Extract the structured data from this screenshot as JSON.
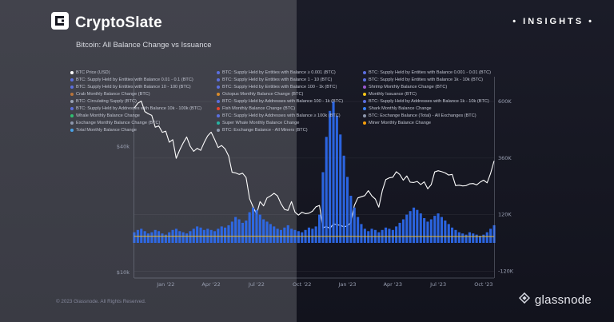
{
  "header": {
    "brand": "CryptoSlate",
    "badge": "• INSIGHTS •",
    "subtitle": "Bitcoin: All Balance Change vs Issuance"
  },
  "footer": {
    "copyright": "© 2023 Glassnode. All Rights Reserved.",
    "brand": "glassnode"
  },
  "legend": {
    "columns": [
      {
        "items": [
          {
            "label": "BTC Price (USD)",
            "color": "#ffffff"
          },
          {
            "label": "BTC: Supply Held by Entities with Balance 0.01 - 0.1 (BTC)",
            "color": "#5b6fe0"
          },
          {
            "label": "BTC: Supply Held by Entities with Balance 10 - 100 (BTC)",
            "color": "#5b6fe0"
          },
          {
            "label": "Crab Monthly Balance Change (BTC)",
            "color": "#b8743a"
          },
          {
            "label": "BTC: Circulating Supply (BTC)",
            "color": "#9aa3b5"
          },
          {
            "label": "BTC: Supply Held by Addresses with Balance 10k - 100k (BTC)",
            "color": "#5b6fe0"
          },
          {
            "label": "Whale Monthly Balance Change",
            "color": "#2fbf71"
          },
          {
            "label": "Exchange Monthly Balance Change (BTC)",
            "color": "#8e98ad"
          },
          {
            "label": "Total Monthly Balance Change",
            "color": "#4aa3e8"
          }
        ]
      },
      {
        "items": [
          {
            "label": "BTC: Supply Held by Entities with Balance ≥ 0.001 (BTC)",
            "color": "#5b6fe0"
          },
          {
            "label": "BTC: Supply Held by Entities with Balance 1 - 10 (BTC)",
            "color": "#5b6fe0"
          },
          {
            "label": "BTC: Supply Held by Entities with Balance 100 - 1k (BTC)",
            "color": "#5b6fe0"
          },
          {
            "label": "Octopus Monthly Balance Change (BTC)",
            "color": "#d98b2b"
          },
          {
            "label": "BTC: Supply Held by Addresses with Balance 100 - 1k (BTC)",
            "color": "#5b6fe0"
          },
          {
            "label": "Fish Monthly Balance Change (BTC)",
            "color": "#e8442e"
          },
          {
            "label": "BTC: Supply Held by Addresses with Balance ≥ 100k (BTC)",
            "color": "#5b6fe0"
          },
          {
            "label": "Super Whale Monthly Balance Change",
            "color": "#27b5a4"
          },
          {
            "label": "BTC: Exchange Balance - All Miners (BTC)",
            "color": "#8e98ad"
          }
        ]
      },
      {
        "items": [
          {
            "label": "BTC: Supply Held by Entities with Balance 0.001 - 0.01 (BTC)",
            "color": "#5b6fe0"
          },
          {
            "label": "BTC: Supply Held by Entities with Balance 1k - 10k (BTC)",
            "color": "#5b6fe0"
          },
          {
            "label": "Shrimp Monthly Balance Change (BTC)",
            "color": "#9b59d0"
          },
          {
            "label": "Monthly Issuance (BTC)",
            "color": "#f5c518"
          },
          {
            "label": "BTC: Supply Held by Addresses with Balance 1k - 10k (BTC)",
            "color": "#5b6fe0"
          },
          {
            "label": "Shark Monthly Balance Change",
            "color": "#3b82f6"
          },
          {
            "label": "BTC: Exchange Balance (Total) - All Exchanges (BTC)",
            "color": "#8e98ad"
          },
          {
            "label": "Miner Monthly Balance Change",
            "color": "#f59e0b"
          }
        ]
      }
    ]
  },
  "chart_data": {
    "type": "mixed",
    "title": "Bitcoin: All Balance Change vs Issuance",
    "x_unit": "weeks",
    "x_range": [
      "Nov '21",
      "Oct '23"
    ],
    "x_ticks": [
      "Jan '22",
      "Apr '22",
      "Jul '22",
      "Oct '22",
      "Jan '23",
      "Apr '23",
      "Jul '23",
      "Oct '23"
    ],
    "x_tick_weeks": [
      9,
      22,
      35,
      48,
      61,
      74,
      87,
      100
    ],
    "price_axis": {
      "scale": "log",
      "labels": [
        "$40k",
        "$10k"
      ],
      "label_values": [
        40000,
        10000
      ]
    },
    "balance_axis": {
      "labels": [
        "600K",
        "360K",
        "120K",
        "-120K"
      ],
      "label_values": [
        600000,
        360000,
        120000,
        -120000
      ]
    },
    "series": [
      {
        "name": "BTC Price (USD)",
        "type": "line",
        "axis": "price",
        "unit": "USD",
        "color": "#ffffff",
        "values": [
          61000,
          64300,
          65900,
          58700,
          57300,
          56300,
          49400,
          50100,
          46700,
          47300,
          41900,
          43100,
          35100,
          38500,
          41600,
          44400,
          40100,
          37900,
          39200,
          38300,
          41800,
          44900,
          46800,
          43200,
          39500,
          40400,
          38900,
          36000,
          30100,
          29900,
          29400,
          29800,
          28400,
          22500,
          20600,
          19000,
          21800,
          20800,
          22700,
          23200,
          23900,
          23200,
          21300,
          20000,
          19800,
          21800,
          19400,
          18800,
          19400,
          19100,
          19200,
          19600,
          20600,
          20900,
          16300,
          16600,
          16200,
          17100,
          16900,
          16800,
          16500,
          16700,
          17300,
          20900,
          22700,
          23000,
          23300,
          24600,
          23200,
          22400,
          20500,
          24600,
          27800,
          28300,
          28500,
          30300,
          29400,
          27600,
          28900,
          27000,
          26900,
          27200,
          26300,
          27100,
          25100,
          26300,
          30200,
          30600,
          30300,
          29900,
          29200,
          29400,
          26000,
          26100,
          25900,
          26000,
          26500,
          26600,
          26200,
          27000,
          27600,
          26800,
          29700,
          34100
        ]
      },
      {
        "name": "Shrimp Monthly Balance Change (BTC)",
        "type": "bar",
        "axis": "balance",
        "unit": "BTC",
        "color": "#2e6bf0",
        "values": [
          45000,
          55000,
          60000,
          50000,
          40000,
          45000,
          55000,
          50000,
          40000,
          35000,
          45000,
          55000,
          60000,
          50000,
          45000,
          40000,
          50000,
          60000,
          70000,
          65000,
          55000,
          60000,
          55000,
          50000,
          60000,
          70000,
          65000,
          75000,
          90000,
          110000,
          100000,
          85000,
          95000,
          130000,
          150000,
          140000,
          120000,
          100000,
          90000,
          80000,
          70000,
          60000,
          55000,
          65000,
          75000,
          60000,
          55000,
          50000,
          45000,
          55000,
          65000,
          60000,
          70000,
          120000,
          300000,
          450000,
          560000,
          600000,
          540000,
          460000,
          370000,
          280000,
          200000,
          150000,
          110000,
          80000,
          60000,
          50000,
          60000,
          55000,
          45000,
          55000,
          65000,
          60000,
          55000,
          70000,
          85000,
          100000,
          120000,
          135000,
          150000,
          140000,
          125000,
          105000,
          90000,
          100000,
          115000,
          125000,
          110000,
          95000,
          80000,
          65000,
          55000,
          45000,
          40000,
          35000,
          45000,
          40000,
          35000,
          30000,
          35000,
          45000,
          60000,
          75000
        ]
      },
      {
        "name": "Monthly Issuance (BTC)",
        "type": "line",
        "axis": "balance",
        "unit": "BTC",
        "color": "#e8b92e",
        "values": [
          28200,
          28200,
          28200,
          28200,
          28200,
          28200,
          28200,
          28200,
          28200,
          28200,
          28200,
          28200,
          28200,
          28000,
          28000,
          28000,
          28000,
          28000,
          28000,
          28000,
          28000,
          28000,
          28000,
          28000,
          28000,
          28000,
          27800,
          27800,
          27800,
          27800,
          27800,
          27800,
          27800,
          27800,
          27800,
          27800,
          27800,
          27800,
          27800,
          27600,
          27600,
          27600,
          27600,
          27600,
          27600,
          27600,
          27600,
          27600,
          27600,
          27600,
          27600,
          27600,
          27400,
          27400,
          27400,
          27400,
          27400,
          27400,
          27400,
          27400,
          27400,
          27400,
          27400,
          27400,
          27400,
          27200,
          27200,
          27200,
          27200,
          27200,
          27200,
          27200,
          27200,
          27200,
          27200,
          27200,
          27200,
          27200,
          27100,
          27100,
          27100,
          27100,
          27100,
          27100,
          27100,
          27100,
          27100,
          27100,
          27100,
          27100,
          27100,
          27000,
          27000,
          27000,
          27000,
          27000,
          27000,
          27000,
          27000,
          27000,
          27000,
          27000,
          27000,
          27000
        ]
      }
    ]
  }
}
